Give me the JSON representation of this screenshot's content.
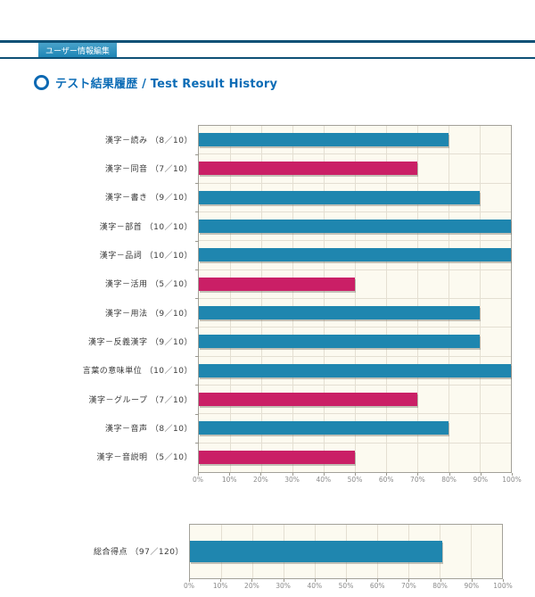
{
  "header": {
    "tab_label": "ユーザー情報編集"
  },
  "title": {
    "text": "テスト結果履歴 / Test Result History"
  },
  "colors": {
    "header_bar": "#14719f",
    "header_bar_edge": "#0d5076",
    "header_tab": "#1e86b6",
    "title_blue": "#0c6cb6",
    "bar_blue": "#1f86af",
    "bar_pink": "#ca1f66",
    "plot_background": "#fcfaf0",
    "gridline": "#e4dfd2",
    "plot_border": "#a3a199",
    "axis_text": "#8b8b8b",
    "category_text": "#3a3a3a"
  },
  "chart_data": [
    {
      "type": "bar",
      "orientation": "horizontal",
      "title": "",
      "categories": [
        "漢字－読み （8／10）",
        "漢字－同音 （7／10）",
        "漢字－書き （9／10）",
        "漢字－部首 （10／10）",
        "漢字－品詞 （10／10）",
        "漢字－活用 （5／10）",
        "漢字－用法 （9／10）",
        "漢字－反義漢字 （9／10）",
        "言葉の意味単位 （10／10）",
        "漢字－グループ （7／10）",
        "漢字－音声 （8／10）",
        "漢字－音説明 （5／10）"
      ],
      "scores": [
        "8/10",
        "7/10",
        "9/10",
        "10/10",
        "10/10",
        "5/10",
        "9/10",
        "9/10",
        "10/10",
        "7/10",
        "8/10",
        "5/10"
      ],
      "values": [
        80,
        70,
        90,
        100,
        100,
        50,
        90,
        90,
        100,
        70,
        80,
        50
      ],
      "bar_colors": [
        "#1f86af",
        "#ca1f66",
        "#1f86af",
        "#1f86af",
        "#1f86af",
        "#ca1f66",
        "#1f86af",
        "#1f86af",
        "#1f86af",
        "#ca1f66",
        "#1f86af",
        "#ca1f66"
      ],
      "x_tick_labels": [
        "0%",
        "10%",
        "20%",
        "30%",
        "40%",
        "50%",
        "60%",
        "70%",
        "80%",
        "90%",
        "100%"
      ],
      "xlim": [
        0,
        100
      ],
      "grid": true,
      "legend": false
    },
    {
      "type": "bar",
      "orientation": "horizontal",
      "title": "",
      "categories": [
        "総合得点 （97／120）"
      ],
      "scores": [
        "97/120"
      ],
      "values": [
        80.8
      ],
      "bar_colors": [
        "#1f86af"
      ],
      "x_tick_labels": [
        "0%",
        "10%",
        "20%",
        "30%",
        "40%",
        "50%",
        "60%",
        "70%",
        "80%",
        "90%",
        "100%"
      ],
      "xlim": [
        0,
        100
      ],
      "grid": true,
      "legend": false
    }
  ]
}
